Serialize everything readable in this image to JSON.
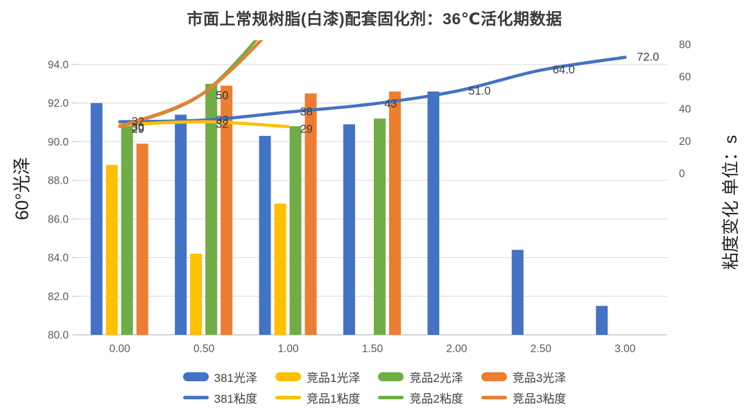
{
  "title": "市面上常规树脂(白漆)配套固化剂：36℃活化期数据",
  "chart_data": {
    "type": "combo-bar-line",
    "title": "市面上常规树脂(白漆)配套固化剂：36℃活化期数据",
    "x_axis": {
      "categories": [
        "0.00",
        "0.50",
        "1.00",
        "1.50",
        "2.00",
        "2.50",
        "3.00"
      ]
    },
    "left_axis": {
      "title": "60°光泽",
      "min": 80.0,
      "max": 94.0,
      "step": 2.0,
      "ticks": [
        {
          "value": 94,
          "label": "94.0"
        },
        {
          "value": 92,
          "label": "92.0"
        },
        {
          "value": 90,
          "label": "90.0"
        },
        {
          "value": 88,
          "label": "88.0"
        },
        {
          "value": 86,
          "label": "86.0"
        },
        {
          "value": 84,
          "label": "84.0"
        },
        {
          "value": 82,
          "label": "82.0"
        },
        {
          "value": 80,
          "label": "80.0"
        }
      ]
    },
    "right_axis": {
      "title": "粘度变化 单位：s",
      "ticks": [
        {
          "value": 80,
          "label": "80"
        },
        {
          "value": 60,
          "label": "60"
        },
        {
          "value": 40,
          "label": "40"
        },
        {
          "value": 20,
          "label": "20"
        },
        {
          "value": 0,
          "label": "0"
        }
      ]
    },
    "bar_series": [
      {
        "slug": "381-gloss",
        "name": "381光泽",
        "color": "#4472C4",
        "values": [
          92.0,
          91.4,
          90.3,
          90.9,
          92.6,
          84.4,
          81.5
        ]
      },
      {
        "slug": "comp1-gloss",
        "name": "竞品1光泽",
        "color": "#FFC000",
        "values": [
          88.8,
          84.2,
          86.8,
          null,
          null,
          null,
          null
        ]
      },
      {
        "slug": "comp2-gloss",
        "name": "竞品2光泽",
        "color": "#70AD47",
        "values": [
          90.9,
          93.0,
          90.8,
          91.2,
          null,
          null,
          null
        ]
      },
      {
        "slug": "comp3-gloss",
        "name": "竞品3光泽",
        "color": "#ED7D31",
        "values": [
          89.9,
          92.9,
          92.5,
          92.6,
          null,
          null,
          null
        ]
      }
    ],
    "line_series": [
      {
        "slug": "381-viscosity",
        "name": "381粘度",
        "color": "#4472C4",
        "values": [
          32,
          33,
          38,
          43,
          51,
          64,
          72
        ],
        "labels": [
          "32",
          "33",
          "38",
          "43",
          "51.0",
          "64.0",
          "72.0"
        ]
      },
      {
        "slug": "comp1-viscosity",
        "name": "竞品1粘度",
        "color": "#FFC000",
        "values": [
          30,
          32,
          29
        ],
        "labels": [
          "30",
          "32",
          "29"
        ]
      },
      {
        "slug": "comp2-viscosity",
        "name": "竞品2粘度",
        "color": "#70AD47",
        "values": [
          29,
          50
        ],
        "labels": [
          "29",
          "50"
        ],
        "exits_top_of_chart": true,
        "exit_estimate_value": 106
      },
      {
        "slug": "comp3-viscosity",
        "name": "竞品3粘度",
        "color": "#ED7D31",
        "values": [
          29,
          50
        ],
        "labels": [
          "29",
          "50"
        ],
        "exits_top_of_chart": true,
        "exit_estimate_value": 100
      }
    ],
    "colors": {
      "grid": "#D9D9D9",
      "axis_line": "#BFBFBF",
      "tick_text": "#595959",
      "data_label_text": "#404040",
      "title_text": "#3a3a3a"
    }
  }
}
